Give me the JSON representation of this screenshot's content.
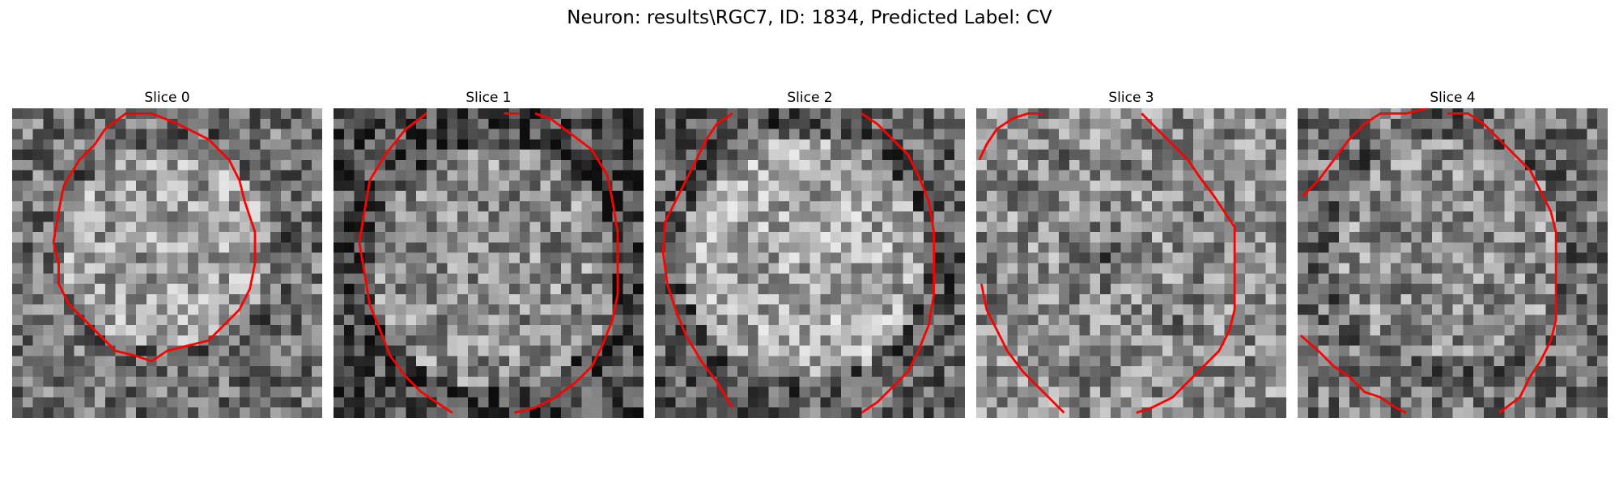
{
  "figure": {
    "title": "Neuron: results\\RGC7, ID: 1834, Predicted Label: CV"
  },
  "panels": [
    {
      "title": "Slice 0",
      "image": "grayscale-neuron-slice-with-red-contour",
      "contour_color": "#ff0000",
      "seed": 11
    },
    {
      "title": "Slice 1",
      "image": "grayscale-neuron-slice-with-red-contour",
      "contour_color": "#ff0000",
      "seed": 23
    },
    {
      "title": "Slice 2",
      "image": "grayscale-neuron-slice-with-red-contour",
      "contour_color": "#ff0000",
      "seed": 37
    },
    {
      "title": "Slice 3",
      "image": "grayscale-neuron-slice-with-red-contour",
      "contour_color": "#ff0000",
      "seed": 41
    },
    {
      "title": "Slice 4",
      "image": "grayscale-neuron-slice-with-red-contour",
      "contour_color": "#ff0000",
      "seed": 59
    }
  ]
}
